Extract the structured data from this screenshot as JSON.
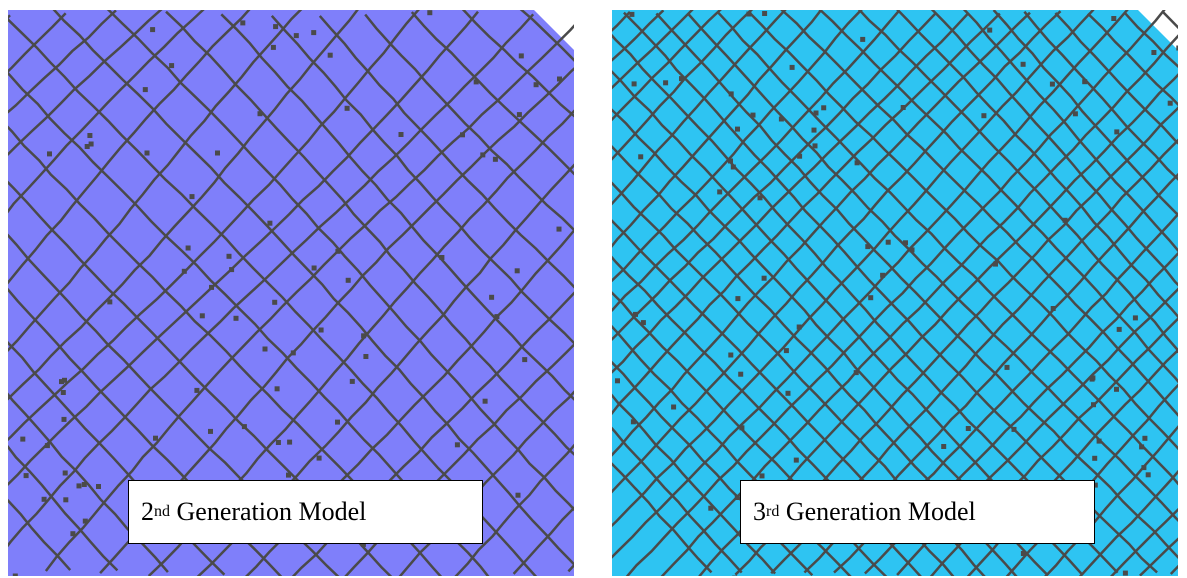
{
  "panels": [
    {
      "caption_prefix": "2",
      "caption_sup": "nd",
      "caption_rest": " Generation Model",
      "fill_color": "#7f7ffa",
      "mesh_color": "#4a4a4a"
    },
    {
      "caption_prefix": "3",
      "caption_sup": "rd",
      "caption_rest": " Generation Model",
      "fill_color": "#2ec4f2",
      "mesh_color": "#4a4a4a"
    }
  ]
}
